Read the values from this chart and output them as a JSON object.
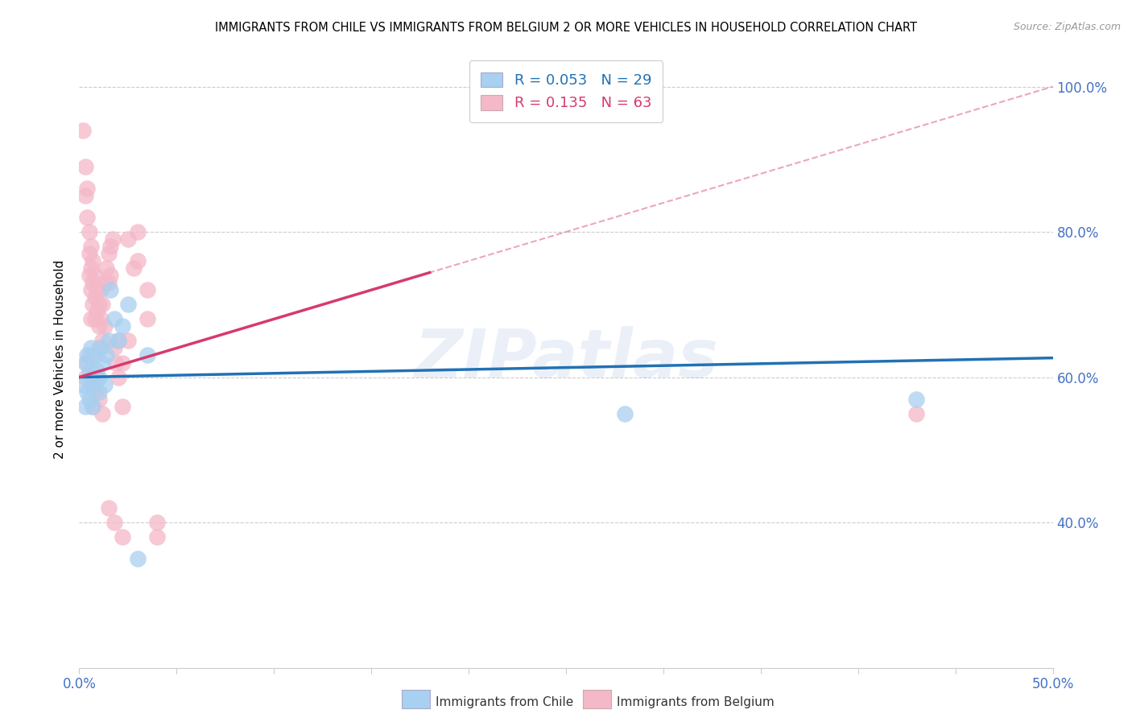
{
  "title": "IMMIGRANTS FROM CHILE VS IMMIGRANTS FROM BELGIUM 2 OR MORE VEHICLES IN HOUSEHOLD CORRELATION CHART",
  "source": "Source: ZipAtlas.com",
  "ylabel": "2 or more Vehicles in Household",
  "xmin": 0.0,
  "xmax": 0.5,
  "ymin": 0.2,
  "ymax": 1.05,
  "xticks": [
    0.0,
    0.0625,
    0.125,
    0.1875,
    0.25,
    0.3125,
    0.375,
    0.4375,
    0.5
  ],
  "xtick_labels_show": {
    "0.0": "0.0%",
    "0.50": "50.0%"
  },
  "yticks_right": [
    0.4,
    0.6,
    0.8,
    1.0
  ],
  "ytick_labels_right": [
    "40.0%",
    "60.0%",
    "80.0%",
    "100.0%"
  ],
  "chile_R": 0.053,
  "chile_N": 29,
  "belgium_R": 0.135,
  "belgium_N": 63,
  "chile_color": "#a8d0f0",
  "belgium_color": "#f4b8c8",
  "chile_line_color": "#2171b5",
  "belgium_line_color": "#d63a6e",
  "chile_x": [
    0.002,
    0.003,
    0.003,
    0.004,
    0.004,
    0.005,
    0.005,
    0.006,
    0.006,
    0.007,
    0.007,
    0.008,
    0.009,
    0.01,
    0.01,
    0.011,
    0.012,
    0.013,
    0.014,
    0.015,
    0.016,
    0.018,
    0.02,
    0.022,
    0.025,
    0.03,
    0.035,
    0.28,
    0.43
  ],
  "chile_y": [
    0.59,
    0.62,
    0.56,
    0.58,
    0.63,
    0.61,
    0.57,
    0.6,
    0.64,
    0.59,
    0.56,
    0.63,
    0.61,
    0.6,
    0.58,
    0.64,
    0.62,
    0.59,
    0.63,
    0.65,
    0.72,
    0.68,
    0.65,
    0.67,
    0.7,
    0.35,
    0.63,
    0.55,
    0.57
  ],
  "belgium_x": [
    0.002,
    0.003,
    0.003,
    0.004,
    0.004,
    0.005,
    0.005,
    0.005,
    0.006,
    0.006,
    0.006,
    0.006,
    0.007,
    0.007,
    0.007,
    0.008,
    0.008,
    0.008,
    0.009,
    0.009,
    0.01,
    0.01,
    0.01,
    0.011,
    0.011,
    0.012,
    0.012,
    0.013,
    0.013,
    0.014,
    0.015,
    0.015,
    0.016,
    0.016,
    0.017,
    0.018,
    0.019,
    0.02,
    0.02,
    0.022,
    0.022,
    0.025,
    0.025,
    0.028,
    0.03,
    0.03,
    0.035,
    0.035,
    0.04,
    0.04,
    0.003,
    0.004,
    0.005,
    0.006,
    0.007,
    0.008,
    0.009,
    0.01,
    0.012,
    0.015,
    0.018,
    0.022,
    0.43
  ],
  "belgium_y": [
    0.94,
    0.89,
    0.85,
    0.86,
    0.82,
    0.8,
    0.77,
    0.74,
    0.78,
    0.75,
    0.72,
    0.68,
    0.76,
    0.73,
    0.7,
    0.74,
    0.71,
    0.68,
    0.72,
    0.69,
    0.7,
    0.67,
    0.64,
    0.68,
    0.72,
    0.7,
    0.65,
    0.67,
    0.73,
    0.75,
    0.77,
    0.73,
    0.78,
    0.74,
    0.79,
    0.64,
    0.62,
    0.65,
    0.6,
    0.62,
    0.56,
    0.65,
    0.79,
    0.75,
    0.8,
    0.76,
    0.72,
    0.68,
    0.4,
    0.38,
    0.6,
    0.62,
    0.63,
    0.59,
    0.56,
    0.58,
    0.6,
    0.57,
    0.55,
    0.42,
    0.4,
    0.38,
    0.55
  ],
  "watermark": "ZIPatlas",
  "legend_chile_label": "Immigrants from Chile",
  "legend_belgium_label": "Immigrants from Belgium",
  "background_color": "#ffffff",
  "tick_label_color": "#4472c4",
  "title_color": "#000000",
  "ylabel_color": "#000000",
  "grid_color": "#cccccc"
}
